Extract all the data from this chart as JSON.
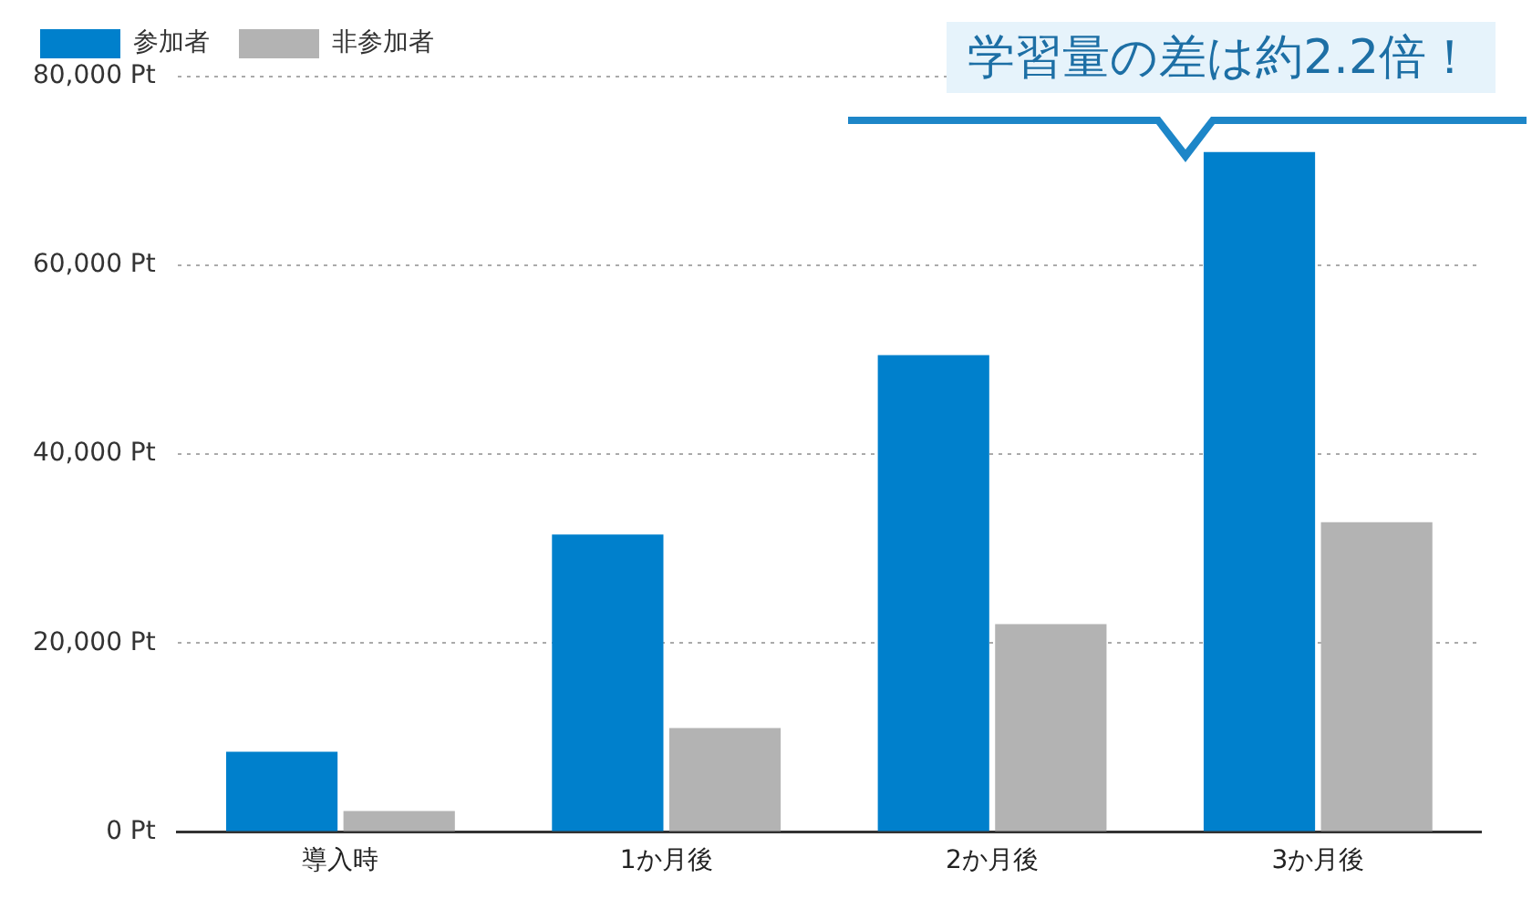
{
  "chart_data": {
    "type": "bar",
    "categories": [
      "導入時",
      "1か月後",
      "2か月後",
      "3か月後"
    ],
    "series": [
      {
        "name": "参加者",
        "color": "#0080cc",
        "values": [
          8500,
          31500,
          50500,
          72000
        ]
      },
      {
        "name": "非参加者",
        "color": "#b3b3b3",
        "values": [
          2200,
          11000,
          22000,
          32800
        ]
      }
    ],
    "ylim": [
      0,
      80000
    ],
    "yticks": [
      {
        "value": 0,
        "label": "0 Pt"
      },
      {
        "value": 20000,
        "label": "20,000 Pt"
      },
      {
        "value": 40000,
        "label": "40,000 Pt"
      },
      {
        "value": 60000,
        "label": "60,000 Pt"
      },
      {
        "value": 80000,
        "label": "80,000 Pt"
      }
    ],
    "grid": "y",
    "legend": "top left",
    "annotations": [
      "学習量の差は約2.2倍！"
    ]
  }
}
